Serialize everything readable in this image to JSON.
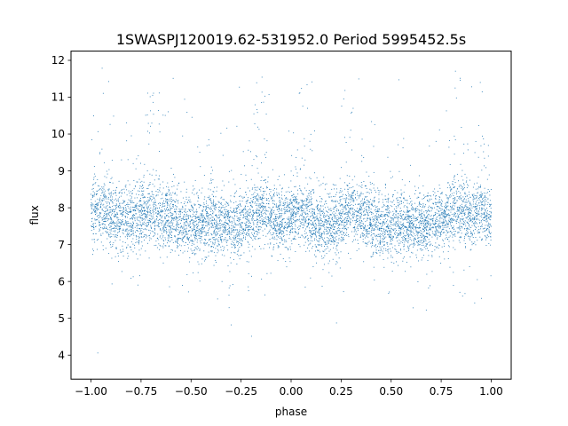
{
  "chart_data": {
    "type": "scatter",
    "title": "1SWASPJ120019.62-531952.0 Period 5995452.5s",
    "xlabel": "phase",
    "ylabel": "flux",
    "xlim": [
      -1.1,
      1.1
    ],
    "ylim": [
      3.35,
      12.25
    ],
    "xticks": [
      -1.0,
      -0.75,
      -0.5,
      -0.25,
      0.0,
      0.25,
      0.5,
      0.75,
      1.0
    ],
    "xtick_labels": [
      "−1.00",
      "−0.75",
      "−0.50",
      "−0.25",
      "0.00",
      "0.25",
      "0.50",
      "0.75",
      "1.00"
    ],
    "yticks": [
      4,
      5,
      6,
      7,
      8,
      9,
      10,
      11,
      12
    ],
    "ytick_labels": [
      "4",
      "5",
      "6",
      "7",
      "8",
      "9",
      "10",
      "11",
      "12"
    ],
    "grid": false,
    "point_color": "#1f77b4",
    "series_summary": {
      "x_range": [
        -1.0,
        1.0
      ],
      "typical_flux_band": [
        7.0,
        8.6
      ],
      "median_flux_approx": 7.7,
      "flux_extremes": [
        3.8,
        11.8
      ],
      "brighter_phases_approx": [
        -0.95,
        -0.7,
        -0.15,
        0.05,
        0.3,
        0.85,
        0.95
      ],
      "fainter_phases_approx": [
        -0.5,
        -0.3,
        0.15,
        0.5,
        0.65
      ]
    }
  }
}
